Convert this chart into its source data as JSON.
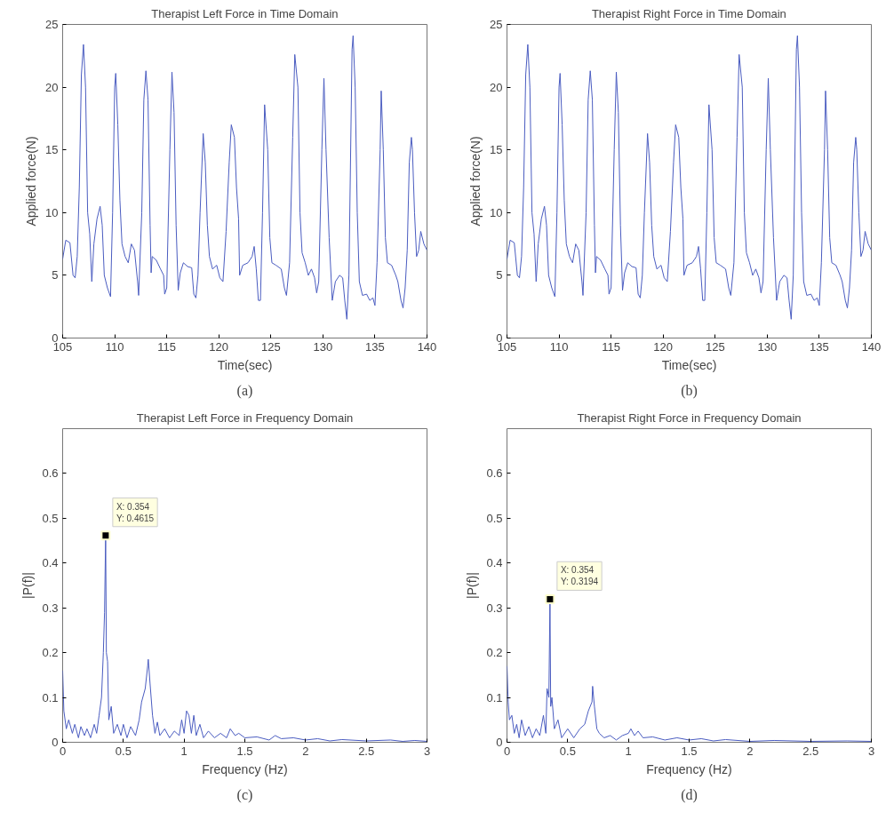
{
  "chart_data": [
    {
      "type": "line",
      "title": "Therapist Left Force in Time Domain",
      "xlabel": "Time(sec)",
      "ylabel": "Applied force(N)",
      "xlim": [
        105,
        140
      ],
      "xticks": [
        105,
        110,
        115,
        120,
        125,
        130,
        135,
        140
      ],
      "ylim": [
        0,
        25
      ],
      "yticks": [
        0,
        5,
        10,
        15,
        20,
        25
      ],
      "annotations": [
        "(a)"
      ],
      "series": [
        {
          "color": "#4a5cc0",
          "x": [
            105.0,
            105.3,
            105.7,
            106.0,
            106.2,
            106.4,
            106.6,
            106.8,
            107.0,
            107.2,
            107.4,
            107.6,
            107.8,
            108.0,
            108.3,
            108.6,
            108.8,
            109.0,
            109.3,
            109.6,
            109.8,
            110.0,
            110.1,
            110.3,
            110.5,
            110.7,
            111.0,
            111.3,
            111.6,
            111.9,
            112.2,
            112.3,
            112.6,
            112.8,
            113.0,
            113.2,
            113.4,
            113.5,
            113.6,
            114.0,
            114.4,
            114.7,
            114.8,
            115.0,
            115.3,
            115.5,
            115.7,
            115.9,
            116.1,
            116.3,
            116.6,
            117.0,
            117.4,
            117.6,
            117.8,
            118.0,
            118.2,
            118.5,
            118.7,
            118.9,
            119.1,
            119.4,
            119.8,
            120.1,
            120.4,
            120.7,
            121.0,
            121.2,
            121.5,
            121.7,
            121.9,
            122.0,
            122.3,
            122.8,
            123.2,
            123.4,
            123.6,
            123.8,
            124.0,
            124.2,
            124.4,
            124.7,
            124.9,
            125.1,
            125.5,
            126.0,
            126.3,
            126.5,
            126.8,
            127.1,
            127.3,
            127.6,
            127.8,
            128.0,
            128.3,
            128.6,
            128.9,
            129.2,
            129.4,
            129.6,
            129.9,
            130.1,
            130.3,
            130.6,
            130.9,
            131.2,
            131.6,
            131.9,
            132.1,
            132.3,
            132.5,
            132.8,
            132.9,
            133.1,
            133.3,
            133.5,
            133.8,
            134.2,
            134.5,
            134.8,
            135.0,
            135.2,
            135.5,
            135.6,
            135.8,
            136.0,
            136.2,
            136.6,
            137.0,
            137.2,
            137.5,
            137.7,
            137.9,
            138.1,
            138.3,
            138.5,
            138.6,
            138.8,
            139.0,
            139.2,
            139.4,
            139.7,
            140.0
          ],
          "values": [
            6.3,
            7.8,
            7.6,
            5.0,
            4.8,
            6.5,
            12,
            21,
            23.4,
            20,
            10,
            8.3,
            4.5,
            7.5,
            9.5,
            10.5,
            9,
            5,
            4,
            3.3,
            10,
            20,
            21.1,
            17,
            11,
            7.5,
            6.5,
            6.0,
            7.5,
            7.0,
            4.5,
            3.4,
            10,
            19,
            21.3,
            19,
            9,
            5.2,
            6.5,
            6.2,
            5.5,
            5.0,
            3.5,
            4.0,
            15,
            21.2,
            18,
            9,
            3.8,
            5.2,
            6.0,
            5.7,
            5.6,
            3.5,
            3.2,
            5,
            10,
            16.3,
            14,
            9,
            6.5,
            5.5,
            5.8,
            4.8,
            4.5,
            8.5,
            14,
            17,
            16,
            12,
            9.5,
            5.0,
            5.8,
            6.0,
            6.5,
            7.3,
            5.5,
            3.0,
            3.0,
            10,
            18.6,
            15,
            8,
            6,
            5.8,
            5.5,
            4.0,
            3.4,
            6,
            16,
            22.6,
            20,
            10,
            6.8,
            6.0,
            5.0,
            5.5,
            4.8,
            3.6,
            4.5,
            15,
            20.7,
            15,
            8,
            3.0,
            4.5,
            5.0,
            4.8,
            3.0,
            1.5,
            5,
            23,
            24.1,
            20,
            10,
            4.5,
            3.4,
            3.5,
            3.0,
            3.2,
            2.6,
            6,
            15,
            19.7,
            15,
            8,
            6.0,
            5.8,
            5.0,
            4.5,
            3.0,
            2.4,
            4,
            7,
            14,
            16.0,
            15,
            10,
            6.5,
            7.0,
            8.5,
            7.5,
            7.0
          ]
        }
      ]
    },
    {
      "type": "line",
      "title": "Therapist Right Force in Time Domain",
      "xlabel": "Time(sec)",
      "ylabel": "Applied force(N)",
      "xlim": [
        105,
        140
      ],
      "xticks": [
        105,
        110,
        115,
        120,
        125,
        130,
        135,
        140
      ],
      "ylim": [
        0,
        25
      ],
      "yticks": [
        0,
        5,
        10,
        15,
        20,
        25
      ],
      "annotations": [
        "(b)"
      ],
      "series": [
        {
          "color": "#4a5cc0",
          "x": [
            105.0,
            105.3,
            105.7,
            106.0,
            106.2,
            106.4,
            106.6,
            106.8,
            107.0,
            107.2,
            107.4,
            107.6,
            107.8,
            108.0,
            108.3,
            108.6,
            108.8,
            109.0,
            109.3,
            109.6,
            109.8,
            110.0,
            110.1,
            110.3,
            110.5,
            110.7,
            111.0,
            111.3,
            111.6,
            111.9,
            112.2,
            112.3,
            112.6,
            112.8,
            113.0,
            113.2,
            113.4,
            113.5,
            113.6,
            114.0,
            114.4,
            114.7,
            114.8,
            115.0,
            115.3,
            115.5,
            115.7,
            115.9,
            116.1,
            116.3,
            116.6,
            117.0,
            117.4,
            117.6,
            117.8,
            118.0,
            118.2,
            118.5,
            118.7,
            118.9,
            119.1,
            119.4,
            119.8,
            120.1,
            120.4,
            120.7,
            121.0,
            121.2,
            121.5,
            121.7,
            121.9,
            122.0,
            122.3,
            122.8,
            123.2,
            123.4,
            123.6,
            123.8,
            124.0,
            124.2,
            124.4,
            124.7,
            124.9,
            125.1,
            125.5,
            126.0,
            126.3,
            126.5,
            126.8,
            127.1,
            127.3,
            127.6,
            127.8,
            128.0,
            128.3,
            128.6,
            128.9,
            129.2,
            129.4,
            129.6,
            129.9,
            130.1,
            130.3,
            130.6,
            130.9,
            131.2,
            131.6,
            131.9,
            132.1,
            132.3,
            132.5,
            132.8,
            132.9,
            133.1,
            133.3,
            133.5,
            133.8,
            134.2,
            134.5,
            134.8,
            135.0,
            135.2,
            135.5,
            135.6,
            135.8,
            136.0,
            136.2,
            136.6,
            137.0,
            137.2,
            137.5,
            137.7,
            137.9,
            138.1,
            138.3,
            138.5,
            138.6,
            138.8,
            139.0,
            139.2,
            139.4,
            139.7,
            140.0
          ],
          "values": [
            6.3,
            7.8,
            7.6,
            5.0,
            4.8,
            6.5,
            12,
            21,
            23.4,
            20,
            10,
            8.3,
            4.5,
            7.5,
            9.5,
            10.5,
            9,
            5,
            4,
            3.3,
            10,
            20,
            21.1,
            17,
            11,
            7.5,
            6.5,
            6.0,
            7.5,
            7.0,
            4.5,
            3.4,
            10,
            19,
            21.3,
            19,
            9,
            5.2,
            6.5,
            6.2,
            5.5,
            5.0,
            3.5,
            4.0,
            15,
            21.2,
            18,
            9,
            3.8,
            5.2,
            6.0,
            5.7,
            5.6,
            3.5,
            3.2,
            5,
            10,
            16.3,
            14,
            9,
            6.5,
            5.5,
            5.8,
            4.8,
            4.5,
            8.5,
            14,
            17,
            16,
            12,
            9.5,
            5.0,
            5.8,
            6.0,
            6.5,
            7.3,
            5.5,
            3.0,
            3.0,
            10,
            18.6,
            15,
            8,
            6,
            5.8,
            5.5,
            4.0,
            3.4,
            6,
            16,
            22.6,
            20,
            10,
            6.8,
            6.0,
            5.0,
            5.5,
            4.8,
            3.6,
            4.5,
            15,
            20.7,
            15,
            8,
            3.0,
            4.5,
            5.0,
            4.8,
            3.0,
            1.5,
            5,
            23,
            24.1,
            20,
            10,
            4.5,
            3.4,
            3.5,
            3.0,
            3.2,
            2.6,
            6,
            15,
            19.7,
            15,
            8,
            6.0,
            5.8,
            5.0,
            4.5,
            3.0,
            2.4,
            4,
            7,
            14,
            16.0,
            15,
            10,
            6.5,
            7.0,
            8.5,
            7.5,
            7.0
          ]
        }
      ]
    },
    {
      "type": "line",
      "title": "Therapist Left Force in Frequency Domain",
      "xlabel": "Frequency (Hz)",
      "ylabel": "|P(f)|",
      "xlim": [
        0,
        3
      ],
      "xticks": [
        0,
        0.5,
        1,
        1.5,
        2,
        2.5,
        3
      ],
      "ylim": [
        0,
        0.7
      ],
      "yticks": [
        0,
        0.1,
        0.2,
        0.3,
        0.4,
        0.5,
        0.6
      ],
      "annotations": [
        {
          "text": "X: 0.354\nY: 0.4615",
          "x": 0.354,
          "y": 0.4615
        },
        "(c)"
      ],
      "series": [
        {
          "color": "#4a5cc0",
          "x": [
            0,
            0.01,
            0.03,
            0.05,
            0.08,
            0.1,
            0.13,
            0.15,
            0.18,
            0.2,
            0.23,
            0.26,
            0.28,
            0.3,
            0.32,
            0.335,
            0.345,
            0.354,
            0.36,
            0.37,
            0.38,
            0.4,
            0.42,
            0.45,
            0.48,
            0.5,
            0.53,
            0.56,
            0.6,
            0.63,
            0.65,
            0.68,
            0.7,
            0.705,
            0.72,
            0.74,
            0.76,
            0.78,
            0.8,
            0.84,
            0.88,
            0.92,
            0.96,
            0.98,
            1.0,
            1.02,
            1.04,
            1.06,
            1.08,
            1.1,
            1.13,
            1.16,
            1.2,
            1.25,
            1.3,
            1.35,
            1.38,
            1.42,
            1.45,
            1.5,
            1.6,
            1.7,
            1.75,
            1.8,
            1.9,
            2.0,
            2.1,
            2.2,
            2.3,
            2.5,
            2.7,
            2.8,
            2.9,
            3.0
          ],
          "values": [
            0.16,
            0.07,
            0.03,
            0.05,
            0.02,
            0.04,
            0.01,
            0.035,
            0.015,
            0.03,
            0.01,
            0.04,
            0.02,
            0.06,
            0.1,
            0.2,
            0.29,
            0.4615,
            0.2,
            0.18,
            0.05,
            0.08,
            0.02,
            0.04,
            0.015,
            0.04,
            0.01,
            0.035,
            0.015,
            0.05,
            0.09,
            0.12,
            0.17,
            0.185,
            0.13,
            0.06,
            0.02,
            0.045,
            0.015,
            0.03,
            0.01,
            0.025,
            0.015,
            0.05,
            0.02,
            0.07,
            0.06,
            0.02,
            0.06,
            0.015,
            0.04,
            0.01,
            0.025,
            0.01,
            0.02,
            0.01,
            0.03,
            0.015,
            0.02,
            0.01,
            0.012,
            0.005,
            0.015,
            0.008,
            0.01,
            0.005,
            0.008,
            0.003,
            0.006,
            0.003,
            0.005,
            0.002,
            0.004,
            0.002
          ]
        }
      ]
    },
    {
      "type": "line",
      "title": "Therapist Right Force in Frequency Domain",
      "xlabel": "Frequency (Hz)",
      "ylabel": "|P(f)|",
      "xlim": [
        0,
        3
      ],
      "xticks": [
        0,
        0.5,
        1,
        1.5,
        2,
        2.5,
        3
      ],
      "ylim": [
        0,
        0.7
      ],
      "yticks": [
        0,
        0.1,
        0.2,
        0.3,
        0.4,
        0.5,
        0.6
      ],
      "annotations": [
        {
          "text": "X: 0.354\nY: 0.3194",
          "x": 0.354,
          "y": 0.3194
        },
        "(d)"
      ],
      "series": [
        {
          "color": "#4a5cc0",
          "x": [
            0,
            0.01,
            0.02,
            0.04,
            0.06,
            0.08,
            0.1,
            0.12,
            0.15,
            0.18,
            0.21,
            0.24,
            0.27,
            0.3,
            0.32,
            0.33,
            0.345,
            0.354,
            0.36,
            0.37,
            0.39,
            0.42,
            0.45,
            0.5,
            0.55,
            0.6,
            0.64,
            0.67,
            0.7,
            0.705,
            0.72,
            0.74,
            0.76,
            0.8,
            0.85,
            0.9,
            0.95,
            1.0,
            1.02,
            1.05,
            1.08,
            1.12,
            1.2,
            1.3,
            1.4,
            1.5,
            1.6,
            1.7,
            1.8,
            2.0,
            2.2,
            2.5,
            2.8,
            3.0
          ],
          "values": [
            0.17,
            0.09,
            0.05,
            0.06,
            0.02,
            0.04,
            0.01,
            0.05,
            0.015,
            0.035,
            0.01,
            0.03,
            0.015,
            0.06,
            0.02,
            0.12,
            0.1,
            0.3194,
            0.08,
            0.1,
            0.03,
            0.05,
            0.01,
            0.03,
            0.01,
            0.03,
            0.04,
            0.07,
            0.09,
            0.125,
            0.08,
            0.03,
            0.02,
            0.01,
            0.015,
            0.005,
            0.015,
            0.02,
            0.03,
            0.015,
            0.025,
            0.01,
            0.012,
            0.005,
            0.01,
            0.005,
            0.008,
            0.003,
            0.006,
            0.002,
            0.004,
            0.002,
            0.003,
            0.002
          ]
        }
      ]
    }
  ]
}
